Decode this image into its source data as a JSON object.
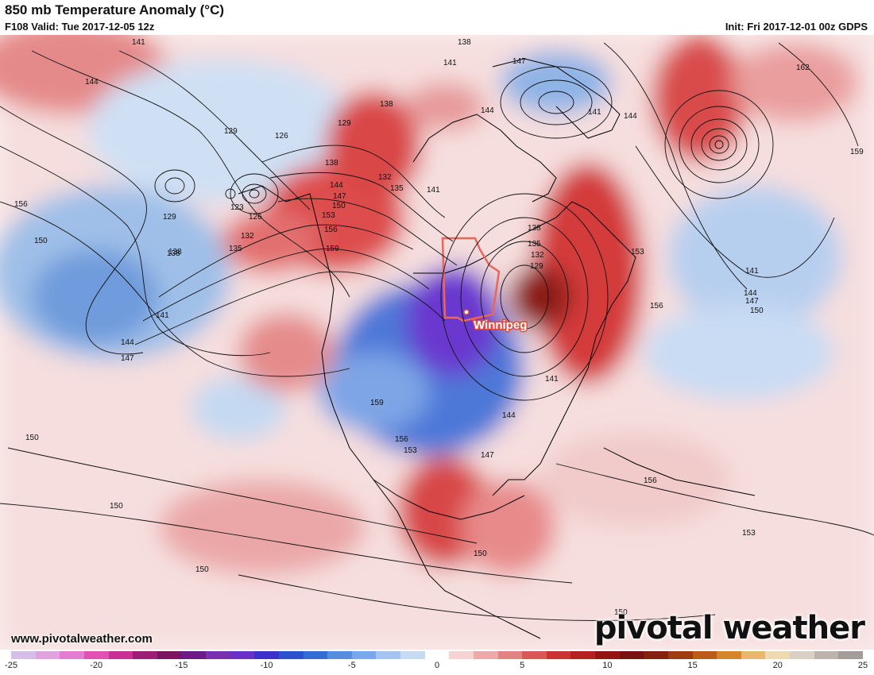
{
  "header": {
    "title": "850 mb Temperature Anomaly (°C)",
    "valid": "F108 Valid: Tue 2017-12-05 12z",
    "init": "Init: Fri 2017-12-01 00z GDPS"
  },
  "map": {
    "city": "Winnipeg",
    "contour_labels": [
      "141",
      "144",
      "138",
      "141",
      "147",
      "144",
      "141",
      "144",
      "162",
      "129",
      "126",
      "129",
      "138",
      "138",
      "159",
      "129",
      "123",
      "126",
      "132",
      "135",
      "138",
      "144",
      "147",
      "150",
      "153",
      "156",
      "159",
      "132",
      "135",
      "141",
      "138",
      "135",
      "132",
      "129",
      "153",
      "156",
      "150",
      "156",
      "138",
      "141",
      "144",
      "147",
      "141",
      "141",
      "144",
      "147",
      "150",
      "144",
      "159",
      "156",
      "153",
      "147",
      "150",
      "156",
      "150",
      "153",
      "150",
      "150",
      "150"
    ],
    "colors": {
      "cold_core": "#7a2fd0",
      "cold": "#2e5fcf",
      "warm": "#d42a2a",
      "warm_core": "#7e1a12",
      "border": "#e9675a"
    }
  },
  "footer": {
    "website": "www.pivotalweather.com",
    "brand": "pivotal weather"
  },
  "colorbar": {
    "ticks": [
      "-25",
      "-20",
      "-15",
      "-10",
      "-5",
      "0",
      "5",
      "10",
      "15",
      "20",
      "25"
    ],
    "colors": [
      "#d5bfe8",
      "#e0a3e0",
      "#e67bd2",
      "#e24fb5",
      "#c92f95",
      "#9e1d77",
      "#7a1660",
      "#6c1b83",
      "#7a2fb0",
      "#6a2fc9",
      "#3b2fcf",
      "#2d4fd0",
      "#3a6ad6",
      "#5a8be0",
      "#7ba6e8",
      "#a5c4ef",
      "#c7daf4",
      "#ffffff",
      "#f6d3d3",
      "#eeaaaa",
      "#e48282",
      "#d95757",
      "#cf3232",
      "#b81f1f",
      "#951414",
      "#7a1010",
      "#871f0f",
      "#a13a12",
      "#bd5a15",
      "#d8852a",
      "#e8b86d",
      "#efd9b0",
      "#d9cfc4",
      "#bdb3ad",
      "#a49c98"
    ]
  }
}
